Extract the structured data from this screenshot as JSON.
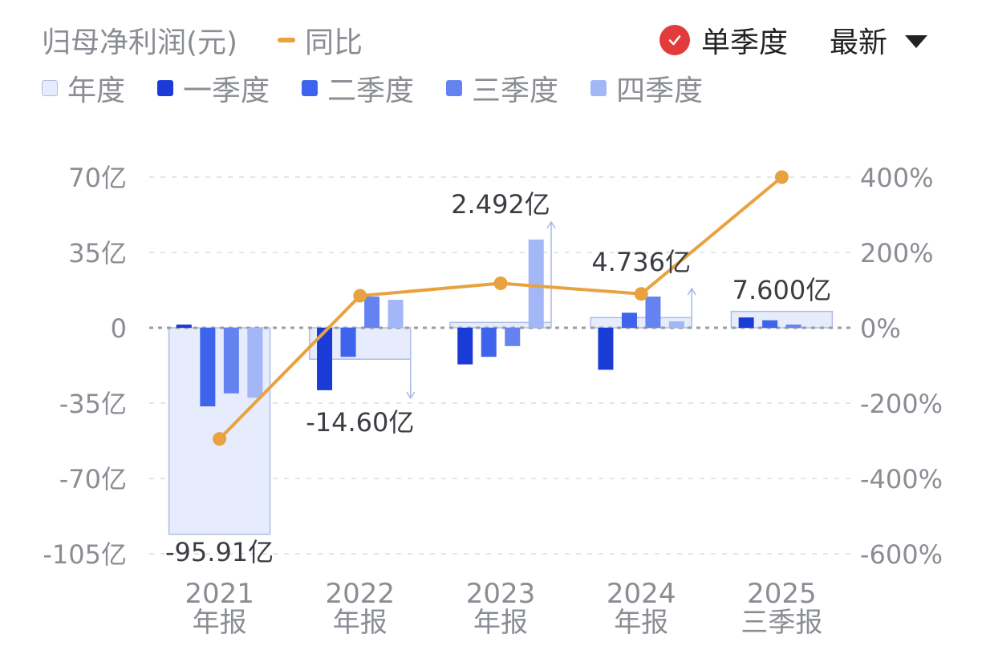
{
  "header": {
    "metric_title": "归母净利润(元)",
    "yoy_label": "同比",
    "single_quarter_label": "单季度",
    "latest_label": "最新"
  },
  "colors": {
    "annual": "#e6ecfb",
    "annual_border": "#aebde3",
    "q1": "#1a3bd6",
    "q2": "#3e63ec",
    "q3": "#6583f0",
    "q4": "#a3b6f6",
    "yoy_line": "#e8a23f",
    "check_red": "#e23b3b",
    "axis_text": "#8a8d93",
    "grid": "#e3e5e8",
    "zero_line": "#9a9da3",
    "arrow": "#a9b8e4"
  },
  "legend": [
    {
      "key": "annual",
      "label": "年度"
    },
    {
      "key": "q1",
      "label": "一季度"
    },
    {
      "key": "q2",
      "label": "二季度"
    },
    {
      "key": "q3",
      "label": "三季度"
    },
    {
      "key": "q4",
      "label": "四季度"
    }
  ],
  "chart_data": {
    "type": "bar",
    "unit_left": "亿",
    "left_axis": {
      "min": -105,
      "max": 70,
      "ticks": [
        70,
        35,
        0,
        -35,
        -70,
        -105
      ],
      "tick_labels": [
        "70亿",
        "35亿",
        "0",
        "-35亿",
        "-70亿",
        "-105亿"
      ]
    },
    "right_axis": {
      "min": -600,
      "max": 400,
      "ticks": [
        400,
        200,
        0,
        -200,
        -400,
        -600
      ],
      "tick_labels": [
        "400%",
        "200%",
        "0%",
        "-200%",
        "-400%",
        "-600%"
      ]
    },
    "categories": [
      {
        "year": "2021",
        "label": "年报"
      },
      {
        "year": "2022",
        "label": "年报"
      },
      {
        "year": "2023",
        "label": "年报"
      },
      {
        "year": "2024",
        "label": "年报"
      },
      {
        "year": "2025",
        "label": "三季报"
      }
    ],
    "annual": [
      {
        "value": -95.91,
        "label": "-95.91亿"
      },
      {
        "value": -14.6,
        "label": "-14.60亿"
      },
      {
        "value": 2.492,
        "label": "2.492亿"
      },
      {
        "value": 4.736,
        "label": "4.736亿"
      },
      {
        "value": 7.6,
        "label": "7.600亿"
      }
    ],
    "series": [
      {
        "key": "q1",
        "name": "一季度",
        "values": [
          1.5,
          -29,
          -17,
          -19.5,
          4.8
        ]
      },
      {
        "key": "q2",
        "name": "二季度",
        "values": [
          -36.5,
          -13.5,
          -13.5,
          7.0,
          3.5
        ]
      },
      {
        "key": "q3",
        "name": "三季度",
        "values": [
          -30.5,
          14.5,
          -8.5,
          14.5,
          1.5
        ]
      },
      {
        "key": "q4",
        "name": "四季度",
        "values": [
          -32.5,
          13.0,
          41.0,
          3.0,
          null
        ]
      }
    ],
    "yoy_percent": [
      -295,
      85,
      118,
      90,
      400
    ],
    "grid": true
  }
}
